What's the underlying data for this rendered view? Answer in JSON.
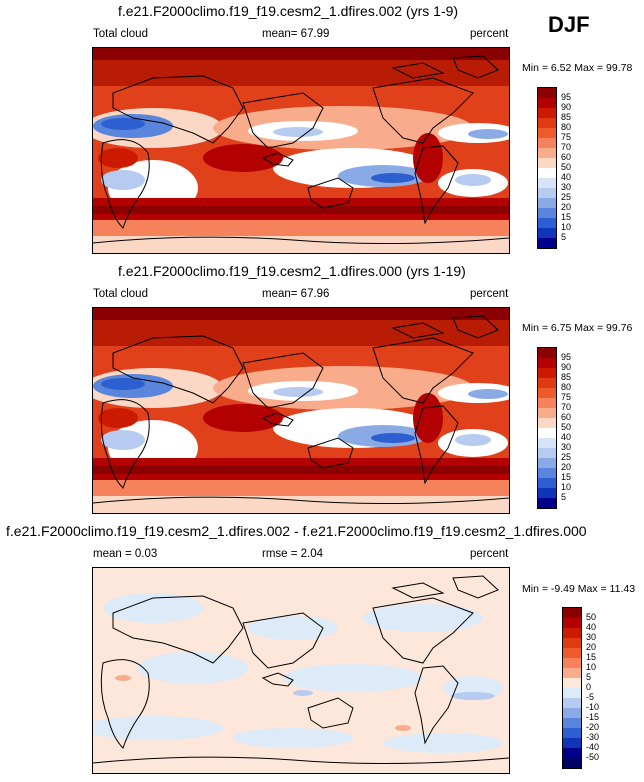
{
  "season": "DJF",
  "panels": [
    {
      "title": "f.e21.F2000climo.f19_f19.cesm2_1.dfires.002 (yrs 1-9)",
      "left_label": "Total cloud",
      "center_label": "mean=  67.99",
      "right_label": "percent",
      "minmax": "Min =  6.52 Max = 99.78",
      "colorbar": {
        "ticks": [
          "95",
          "90",
          "85",
          "80",
          "75",
          "70",
          "60",
          "50",
          "40",
          "30",
          "25",
          "20",
          "15",
          "10",
          "5"
        ],
        "colors": [
          "#8b0000",
          "#b30000",
          "#cc1a00",
          "#e03a10",
          "#ef5a2a",
          "#f5825a",
          "#f9ac8c",
          "#fbd8c6",
          "#ffffff",
          "#d7e3f6",
          "#b6cbef",
          "#8aaae6",
          "#5a85dc",
          "#2e5fd0",
          "#1035b8",
          "#00008b"
        ]
      }
    },
    {
      "title": "f.e21.F2000climo.f19_f19.cesm2_1.dfires.000 (yrs 1-19)",
      "left_label": "Total cloud",
      "center_label": "mean=  67.96",
      "right_label": "percent",
      "minmax": "Min =  6.75 Max = 99.76",
      "colorbar": {
        "ticks": [
          "95",
          "90",
          "85",
          "80",
          "75",
          "70",
          "60",
          "50",
          "40",
          "30",
          "25",
          "20",
          "15",
          "10",
          "5"
        ],
        "colors": [
          "#8b0000",
          "#b30000",
          "#cc1a00",
          "#e03a10",
          "#ef5a2a",
          "#f5825a",
          "#f9ac8c",
          "#fbd8c6",
          "#ffffff",
          "#d7e3f6",
          "#b6cbef",
          "#8aaae6",
          "#5a85dc",
          "#2e5fd0",
          "#1035b8",
          "#00008b"
        ]
      }
    },
    {
      "title": "f.e21.F2000climo.f19_f19.cesm2_1.dfires.002 - f.e21.F2000climo.f19_f19.cesm2_1.dfires.000",
      "left_label": "mean =  0.03",
      "center_label": "rmse =  2.04",
      "right_label": "percent",
      "minmax": "Min = -9.49 Max = 11.43",
      "colorbar": {
        "ticks": [
          "50",
          "40",
          "30",
          "20",
          "15",
          "10",
          "5",
          "0",
          "-5",
          "-10",
          "-15",
          "-20",
          "-30",
          "-40",
          "-50"
        ],
        "colors": [
          "#8b0000",
          "#b30000",
          "#cc1a00",
          "#e03a10",
          "#ef5a2a",
          "#f5825a",
          "#f9ac8c",
          "#fde6da",
          "#ddeaf8",
          "#b6cbef",
          "#8aaae6",
          "#5a85dc",
          "#2e5fd0",
          "#1035b8",
          "#00008b",
          "#000066"
        ]
      }
    }
  ]
}
